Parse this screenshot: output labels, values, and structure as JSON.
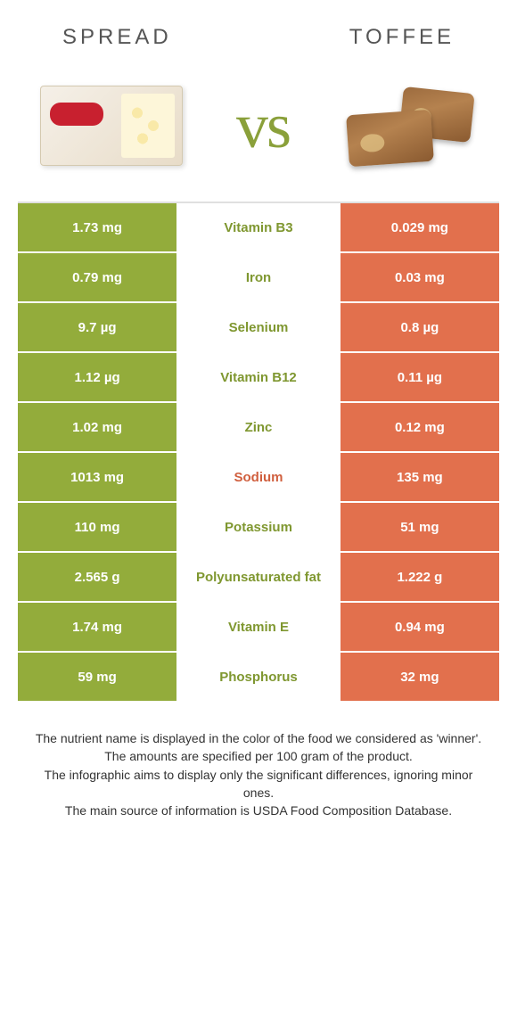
{
  "header": {
    "left_title": "Spread",
    "right_title": "Toffee"
  },
  "vs_label": "vs",
  "colors": {
    "left_bg": "#93ac3b",
    "right_bg": "#e2704d",
    "left_text": "#7f9730",
    "right_text": "#d05f3e"
  },
  "rows": [
    {
      "left": "1.73 mg",
      "label": "Vitamin B3",
      "right": "0.029 mg",
      "winner": "left"
    },
    {
      "left": "0.79 mg",
      "label": "Iron",
      "right": "0.03 mg",
      "winner": "left"
    },
    {
      "left": "9.7 µg",
      "label": "Selenium",
      "right": "0.8 µg",
      "winner": "left"
    },
    {
      "left": "1.12 µg",
      "label": "Vitamin B12",
      "right": "0.11 µg",
      "winner": "left"
    },
    {
      "left": "1.02 mg",
      "label": "Zinc",
      "right": "0.12 mg",
      "winner": "left"
    },
    {
      "left": "1013 mg",
      "label": "Sodium",
      "right": "135 mg",
      "winner": "right"
    },
    {
      "left": "110 mg",
      "label": "Potassium",
      "right": "51 mg",
      "winner": "left"
    },
    {
      "left": "2.565 g",
      "label": "Polyunsaturated fat",
      "right": "1.222 g",
      "winner": "left"
    },
    {
      "left": "1.74 mg",
      "label": "Vitamin E",
      "right": "0.94 mg",
      "winner": "left"
    },
    {
      "left": "59 mg",
      "label": "Phosphorus",
      "right": "32 mg",
      "winner": "left"
    }
  ],
  "footnotes": [
    "The nutrient name is displayed in the color of the food we considered as 'winner'.",
    "The amounts are specified per 100 gram of the product.",
    "The infographic aims to display only the significant differences, ignoring minor ones.",
    "The main source of information is USDA Food Composition Database."
  ]
}
